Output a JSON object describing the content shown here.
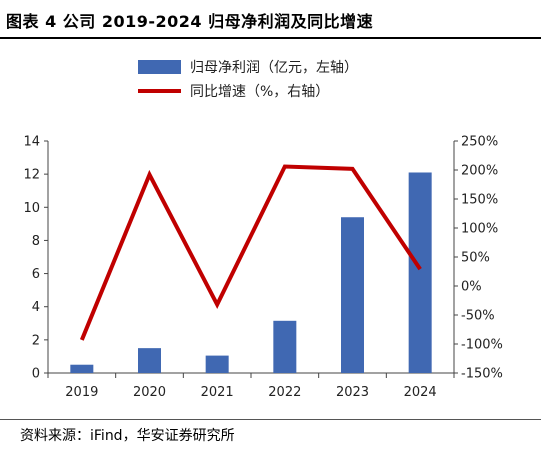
{
  "figure": {
    "title": "图表 4 公司 2019-2024 归母净利润及同比增速",
    "source": "资料来源：iFind，华安证券研究所"
  },
  "colors": {
    "bar": "#4068b2",
    "line": "#c00000",
    "axis": "#444444",
    "text": "#222222"
  },
  "chart_data": {
    "type": "bar",
    "categories": [
      "2019",
      "2020",
      "2021",
      "2022",
      "2023",
      "2024"
    ],
    "series": [
      {
        "name": "归母净利润（亿元，左轴）",
        "type": "bar",
        "axis": "left",
        "values": [
          0.5,
          1.5,
          1.05,
          3.15,
          9.4,
          12.1
        ]
      },
      {
        "name": "同比增速（%，右轴）",
        "type": "line",
        "axis": "right",
        "values": [
          -93,
          192,
          -32,
          206,
          202,
          29
        ]
      }
    ],
    "y_left": {
      "min": 0,
      "max": 14,
      "ticks": [
        "0",
        "2",
        "4",
        "6",
        "8",
        "10",
        "12",
        "14"
      ]
    },
    "y_right": {
      "min": -150,
      "max": 250,
      "ticks": [
        "-150%",
        "-100%",
        "-50%",
        "0%",
        "50%",
        "100%",
        "150%",
        "200%",
        "250%"
      ]
    },
    "grid": false,
    "legend_position": "top-center"
  }
}
